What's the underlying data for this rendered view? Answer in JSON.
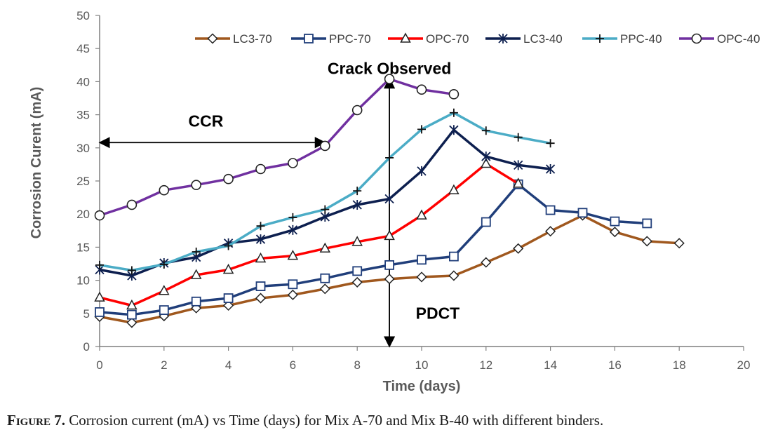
{
  "chart_data": {
    "type": "line",
    "xlabel": "Time (days)",
    "ylabel": "Corrosion Curent (mA)",
    "xlim": [
      0,
      20
    ],
    "ylim": [
      0,
      50
    ],
    "xticks": [
      "0",
      "2",
      "4",
      "6",
      "8",
      "10",
      "12",
      "14",
      "16",
      "18",
      "20"
    ],
    "yticks": [
      "0",
      "5",
      "10",
      "15",
      "20",
      "25",
      "30",
      "35",
      "40",
      "45",
      "50"
    ],
    "grid": false,
    "legend_position": "top",
    "series": [
      {
        "name": "LC3-70",
        "color": "#a0581e",
        "marker": "diamond",
        "x": [
          0,
          1,
          2,
          3,
          4,
          5,
          6,
          7,
          8,
          9,
          10,
          11,
          12,
          13,
          14,
          15,
          16,
          17,
          18
        ],
        "y": [
          4.5,
          3.6,
          4.6,
          5.8,
          6.2,
          7.3,
          7.8,
          8.7,
          9.7,
          10.2,
          10.5,
          10.7,
          12.7,
          14.8,
          17.4,
          19.8,
          17.3,
          15.9,
          15.6
        ]
      },
      {
        "name": "PPC-70",
        "color": "#203e7a",
        "marker": "square",
        "x": [
          0,
          1,
          2,
          3,
          4,
          5,
          6,
          7,
          8,
          9,
          10,
          11,
          12,
          13,
          14,
          15,
          16,
          17
        ],
        "y": [
          5.2,
          4.8,
          5.5,
          6.8,
          7.3,
          9.1,
          9.4,
          10.3,
          11.4,
          12.3,
          13.1,
          13.6,
          18.8,
          24.5,
          20.6,
          20.2,
          18.9,
          18.6
        ]
      },
      {
        "name": "OPC-70",
        "color": "#ff0000",
        "marker": "triangle",
        "x": [
          0,
          1,
          2,
          3,
          4,
          5,
          6,
          7,
          8,
          9,
          10,
          11,
          12,
          13
        ],
        "y": [
          7.4,
          6.2,
          8.4,
          10.8,
          11.6,
          13.3,
          13.7,
          14.8,
          15.8,
          16.7,
          19.8,
          23.6,
          27.6,
          24.6
        ]
      },
      {
        "name": "LC3-40",
        "color": "#0d1f4f",
        "marker": "asterisk",
        "x": [
          0,
          1,
          2,
          3,
          4,
          5,
          6,
          7,
          8,
          9,
          10,
          11,
          12,
          13,
          14
        ],
        "y": [
          11.6,
          10.7,
          12.6,
          13.5,
          15.6,
          16.2,
          17.6,
          19.6,
          21.4,
          22.3,
          26.5,
          32.7,
          28.7,
          27.4,
          26.8
        ]
      },
      {
        "name": "PPC-40",
        "color": "#4bacc6",
        "marker": "plus",
        "x": [
          0,
          1,
          2,
          3,
          4,
          5,
          6,
          7,
          8,
          9,
          10,
          11,
          12,
          13,
          14
        ],
        "y": [
          12.3,
          11.5,
          12.4,
          14.3,
          15.2,
          18.2,
          19.5,
          20.7,
          23.5,
          28.5,
          32.8,
          35.3,
          32.6,
          31.6,
          30.7
        ]
      },
      {
        "name": "OPC-40",
        "color": "#7030a0",
        "marker": "circle",
        "x": [
          0,
          1,
          2,
          3,
          4,
          5,
          6,
          7,
          8,
          9,
          10,
          11
        ],
        "y": [
          19.8,
          21.4,
          23.6,
          24.4,
          25.3,
          26.8,
          27.7,
          30.3,
          35.7,
          40.4,
          38.8,
          38.1
        ]
      }
    ],
    "annotations": [
      {
        "text": "Crack Observed",
        "x": 9,
        "y": 40.5
      },
      {
        "text": "CCR",
        "x": 3.3,
        "y": 33.2
      },
      {
        "text": "PDCT",
        "x": 10.5,
        "y": 4.2
      }
    ],
    "arrows": [
      {
        "name": "ccr-arrow",
        "from": [
          0,
          30.8
        ],
        "to": [
          7,
          30.8
        ],
        "both_ends": true
      },
      {
        "name": "pdct-arrow",
        "from": [
          9,
          0
        ],
        "to": [
          9,
          40.5
        ],
        "both_ends": true
      }
    ]
  },
  "caption": {
    "label": "Figure 7.",
    "text": " Corrosion current (mA) vs Time (days) for Mix A-70 and Mix B-40  with different binders."
  }
}
